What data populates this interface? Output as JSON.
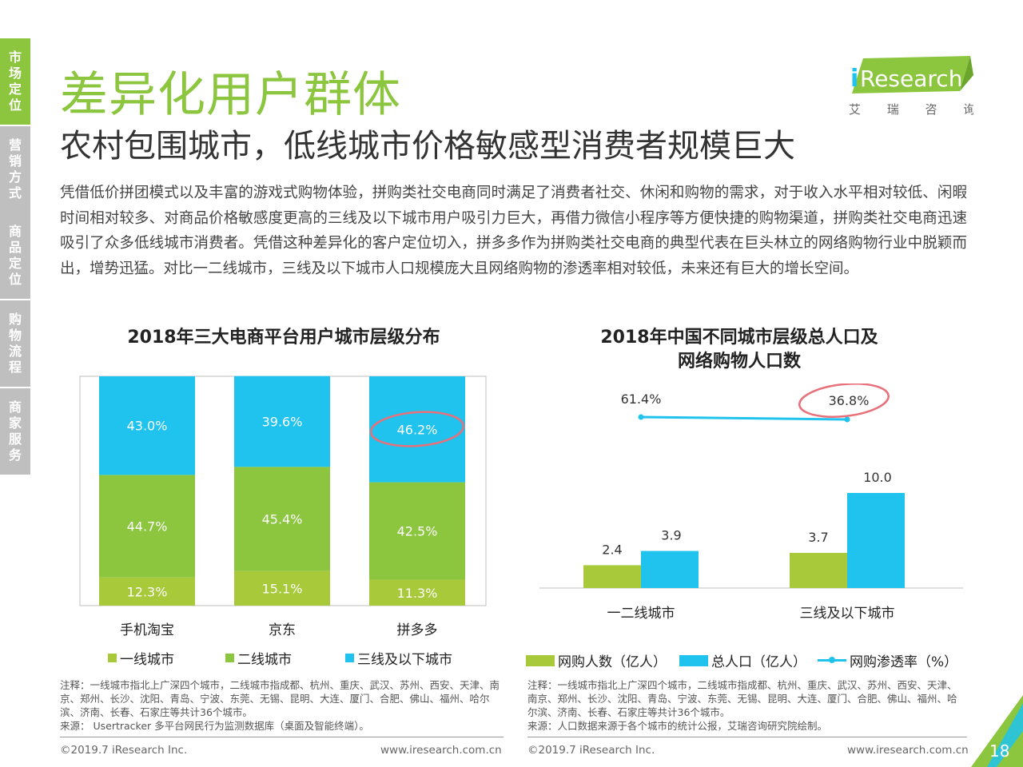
{
  "nav": [
    {
      "label": "市场定位",
      "color": "#8CC63F",
      "active": true
    },
    {
      "label": "营销方式",
      "color": "#BFBFBF",
      "active": false
    },
    {
      "label": "商品定位",
      "color": "#BFBFBF",
      "active": false
    },
    {
      "label": "购物流程",
      "color": "#BFBFBF",
      "active": false
    },
    {
      "label": "商家服务",
      "color": "#BFBFBF",
      "active": false
    }
  ],
  "page_title": "差异化用户群体",
  "subtitle": "农村包围城市，低线城市价格敏感型消费者规模巨大",
  "intro": "凭借低价拼团模式以及丰富的游戏式购物体验，拼购类社交电商同时满足了消费者社交、休闲和购物的需求，对于收入水平相对较低、闲暇时间相对较多、对商品价格敏感度更高的三线及以下城市用户吸引力巨大，再借力微信小程序等方便快捷的购物渠道，拼购类社交电商迅速吸引了众多低线城市消费者。凭借这种差异化的客户定位切入，拼多多作为拼购类社交电商的典型代表在巨头林立的网络购物行业中脱颖而出，增势迅猛。对比一二线城市，三线及以下城市人口规模庞大且网络购物的渗透率相对较低，未来还有巨大的增长空间。",
  "logo": {
    "brand_i": "i",
    "brand_rest": "Research",
    "chinese": "艾 瑞 咨 询"
  },
  "colors": {
    "green_light": "#A7C93A",
    "green": "#8CC63F",
    "blue": "#1FC3EE",
    "circle": "#E8707A"
  },
  "chart_data": [
    {
      "type": "bar",
      "stacked": true,
      "title": "2018年三大电商平台用户城市层级分布",
      "categories": [
        "手机淘宝",
        "京东",
        "拼多多"
      ],
      "series": [
        {
          "name": "一线城市",
          "values": [
            12.3,
            15.1,
            11.3
          ],
          "labels": [
            "12.3%",
            "15.1%",
            "11.3%"
          ],
          "color": "#A7C93A"
        },
        {
          "name": "二线城市",
          "values": [
            44.7,
            45.4,
            42.5
          ],
          "labels": [
            "44.7%",
            "45.4%",
            "42.5%"
          ],
          "color": "#8CC63F"
        },
        {
          "name": "三线及以下城市",
          "values": [
            43.0,
            39.6,
            46.2
          ],
          "labels": [
            "43.0%",
            "39.6%",
            "46.2%"
          ],
          "color": "#1FC3EE"
        }
      ],
      "ylim": [
        0,
        100
      ],
      "legend": "bottom"
    },
    {
      "type": "bar",
      "title_line1": "2018年中国不同城市层级总人口及",
      "title_line2": "网络购物人口数",
      "categories": [
        "一二线城市",
        "三线及以下城市"
      ],
      "series": [
        {
          "name": "网购人数（亿人）",
          "values": [
            2.4,
            3.7
          ],
          "labels": [
            "2.4",
            "3.7"
          ],
          "color": "#A7C93A"
        },
        {
          "name": "总人口（亿人）",
          "values": [
            3.9,
            10.0
          ],
          "labels": [
            "3.9",
            "10.0"
          ],
          "color": "#1FC3EE"
        }
      ],
      "line_series": {
        "name": "网购渗透率（%）",
        "values": [
          61.4,
          36.8
        ],
        "labels": [
          "61.4%",
          "36.8%"
        ],
        "color": "#1FC3EE"
      },
      "legend": "bottom"
    }
  ],
  "notes": {
    "left_note": "注释：一线城市指北上广深四个城市，二线城市指成都、杭州、重庆、武汉、苏州、西安、天津、南京、郑州、长沙、沈阳、青岛、宁波、东莞、无锡、昆明、大连、厦门、合肥、佛山、福州、哈尔滨、济南、长春、石家庄等共计36个城市。",
    "left_source": "来源： Usertracker 多平台网民行为监测数据库（桌面及智能终端）。",
    "right_note": "注释：一线城市指北上广深四个城市，二线城市指成都、杭州、重庆、武汉、苏州、西安、天津、南京、郑州、长沙、沈阳、青岛、宁波、东莞、无锡、昆明、大连、厦门、合肥、佛山、福州、哈尔滨、济南、长春、石家庄等共计36个城市。",
    "right_source": "来源：人口数据来源于各个城市的统计公报，艾瑞咨询研究院绘制。"
  },
  "footer": {
    "copyright": "©2019.7 iResearch Inc.",
    "url": "www.iresearch.com.cn",
    "page_number": "18"
  }
}
